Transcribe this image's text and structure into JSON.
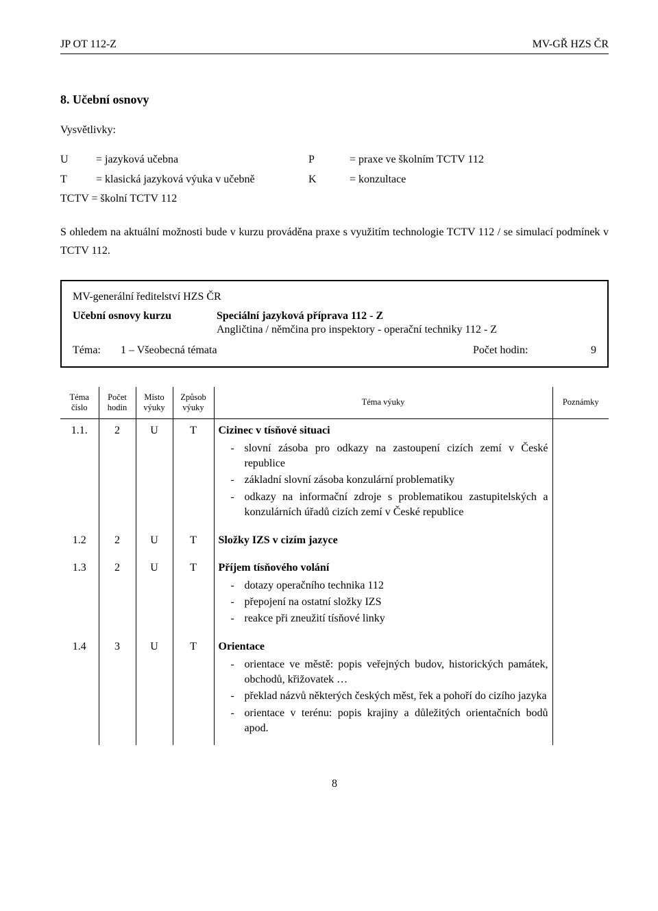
{
  "header": {
    "left": "JP OT 112-Z",
    "right": "MV-GŘ HZS ČR"
  },
  "section_title": "8. Učební osnovy",
  "explain_label": "Vysvětlivky:",
  "legend": {
    "u": {
      "sym": "U",
      "text": "= jazyková učebna"
    },
    "p": {
      "sym": "P",
      "text": "= praxe ve školním TCTV 112"
    },
    "t": {
      "sym": "T",
      "text": "= klasická jazyková výuka v učebně"
    },
    "k": {
      "sym": "K",
      "text": "= konzultace"
    },
    "tctv": "TCTV = školní TCTV 112"
  },
  "paragraph": "S ohledem na aktuální možnosti bude v kurzu prováděna praxe s využitím technologie TCTV 112 / se simulací podmínek v TCTV 112.",
  "box": {
    "org": "MV-generální ředitelství HZS ČR",
    "label": "Učební osnovy kurzu",
    "title": "Speciální jazyková příprava 112 - Z",
    "subtitle": "Angličtina / němčina pro inspektory - operační techniky 112 - Z",
    "tema_label": "Téma:",
    "tema_val": "1 – Všeobecná témata",
    "hours_label": "Počet hodin:",
    "hours_val": "9"
  },
  "table": {
    "headers": {
      "num": "Téma\nčíslo",
      "hod": "Počet\nhodin",
      "mist": "Místo\nvýuky",
      "zpus": "Způsob\nvýuky",
      "tema": "Téma výuky",
      "pozn": "Poznámky"
    },
    "rows": [
      {
        "num": "1.1.",
        "hod": "2",
        "mist": "U",
        "zpus": "T",
        "title": "Cizinec v tísňové situaci",
        "bullets": [
          "slovní zásoba pro odkazy na zastoupení cizích zemí v České republice",
          "základní slovní zásoba konzulární problematiky",
          "odkazy na informační zdroje s problematikou zastupitelských a konzulárních úřadů cizích zemí v České republice"
        ]
      },
      {
        "num": "1.2",
        "hod": "2",
        "mist": "U",
        "zpus": "T",
        "title": "Složky IZS v cizím jazyce",
        "bullets": []
      },
      {
        "num": "1.3",
        "hod": "2",
        "mist": "U",
        "zpus": "T",
        "title": "Příjem tísňového volání",
        "bullets": [
          "dotazy operačního technika 112",
          "přepojení na ostatní složky IZS",
          "reakce při zneužití tísňové linky"
        ]
      },
      {
        "num": "1.4",
        "hod": "3",
        "mist": "U",
        "zpus": "T",
        "title": "Orientace",
        "bullets": [
          "orientace ve městě: popis veřejných budov, historických památek, obchodů, křižovatek …",
          "překlad názvů některých českých měst, řek a pohoří do cizího jazyka",
          "orientace v terénu: popis krajiny a důležitých orientačních bodů apod."
        ]
      }
    ]
  },
  "page_number": "8"
}
